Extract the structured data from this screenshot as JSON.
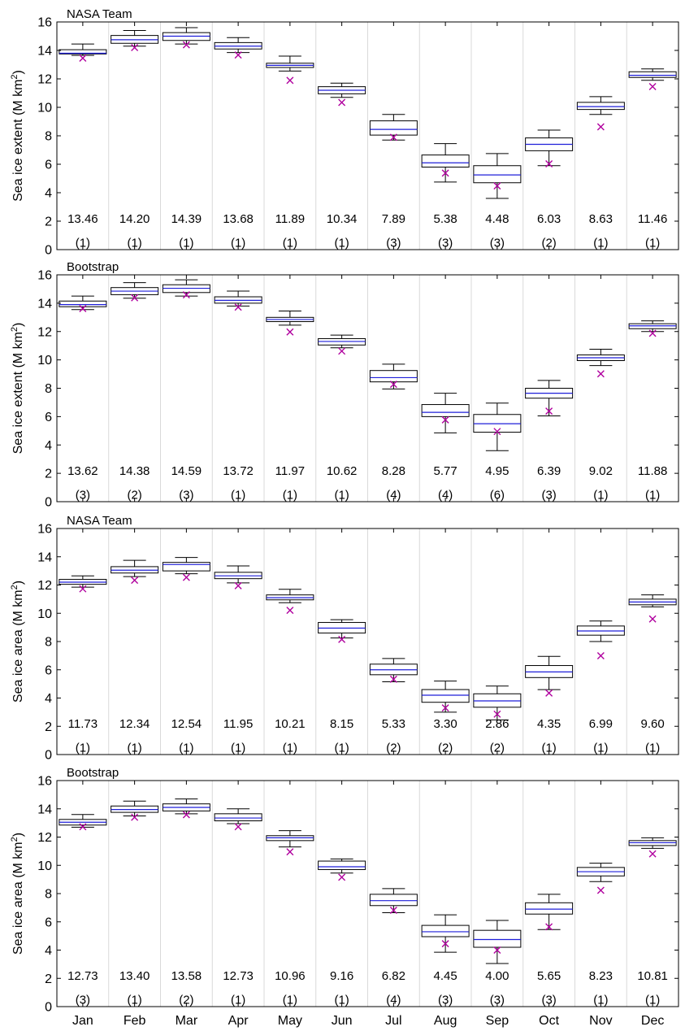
{
  "colors": {
    "median": "#1f1fd9",
    "minimum_marker": "#b0009e",
    "box": "#000000",
    "grid": "#d9d9d9"
  },
  "chart_data": [
    {
      "type": "box",
      "title": "NASA Team",
      "ylabel": "Sea ice extent (M km",
      "ylabel_sup": "2",
      "ylabel_close": ")",
      "ylim": [
        0,
        16
      ],
      "yticks": [
        "0",
        "2",
        "4",
        "6",
        "8",
        "10",
        "12",
        "14",
        "16"
      ],
      "categories": [
        "Jan",
        "Feb",
        "Mar",
        "Apr",
        "May",
        "Jun",
        "Jul",
        "Aug",
        "Sep",
        "Oct",
        "Nov",
        "Dec"
      ],
      "boxes": [
        {
          "whisker_low": 13.65,
          "q1": 13.75,
          "median": 13.8,
          "q3": 14.05,
          "whisker_high": 14.45
        },
        {
          "whisker_low": 14.3,
          "q1": 14.5,
          "median": 14.75,
          "q3": 15.05,
          "whisker_high": 15.4
        },
        {
          "whisker_low": 14.45,
          "q1": 14.7,
          "median": 15.0,
          "q3": 15.25,
          "whisker_high": 15.6
        },
        {
          "whisker_low": 13.85,
          "q1": 14.1,
          "median": 14.3,
          "q3": 14.55,
          "whisker_high": 14.9
        },
        {
          "whisker_low": 12.55,
          "q1": 12.8,
          "median": 12.95,
          "q3": 13.1,
          "whisker_high": 13.6
        },
        {
          "whisker_low": 10.7,
          "q1": 10.95,
          "median": 11.2,
          "q3": 11.45,
          "whisker_high": 11.7
        },
        {
          "whisker_low": 7.7,
          "q1": 8.05,
          "median": 8.45,
          "q3": 9.05,
          "whisker_high": 9.5
        },
        {
          "whisker_low": 4.75,
          "q1": 5.8,
          "median": 6.1,
          "q3": 6.65,
          "whisker_high": 7.45
        },
        {
          "whisker_low": 3.6,
          "q1": 4.7,
          "median": 5.25,
          "q3": 5.9,
          "whisker_high": 6.75
        },
        {
          "whisker_low": 5.9,
          "q1": 6.95,
          "median": 7.4,
          "q3": 7.85,
          "whisker_high": 8.4
        },
        {
          "whisker_low": 9.5,
          "q1": 9.85,
          "median": 10.05,
          "q3": 10.35,
          "whisker_high": 10.75
        },
        {
          "whisker_low": 11.9,
          "q1": 12.1,
          "median": 12.25,
          "q3": 12.5,
          "whisker_high": 12.7
        }
      ],
      "minimums": [
        13.46,
        14.2,
        14.39,
        13.68,
        11.89,
        10.34,
        7.89,
        5.38,
        4.48,
        6.03,
        8.63,
        11.46
      ],
      "value_labels": [
        "13.46",
        "14.20",
        "14.39",
        "13.68",
        "11.89",
        "10.34",
        "7.89",
        "5.38",
        "4.48",
        "6.03",
        "8.63",
        "11.46"
      ],
      "count_labels": [
        "(1)",
        "(1)",
        "(1)",
        "(1)",
        "(1)",
        "(1)",
        "(3)",
        "(3)",
        "(3)",
        "(2)",
        "(1)",
        "(1)"
      ]
    },
    {
      "type": "box",
      "title": "Bootstrap",
      "ylabel": "Sea ice extent (M km",
      "ylabel_sup": "2",
      "ylabel_close": ")",
      "ylim": [
        0,
        16
      ],
      "yticks": [
        "0",
        "2",
        "4",
        "6",
        "8",
        "10",
        "12",
        "14",
        "16"
      ],
      "categories": [
        "Jan",
        "Feb",
        "Mar",
        "Apr",
        "May",
        "Jun",
        "Jul",
        "Aug",
        "Sep",
        "Oct",
        "Nov",
        "Dec"
      ],
      "boxes": [
        {
          "whisker_low": 13.55,
          "q1": 13.75,
          "median": 13.9,
          "q3": 14.15,
          "whisker_high": 14.5
        },
        {
          "whisker_low": 14.35,
          "q1": 14.6,
          "median": 14.85,
          "q3": 15.1,
          "whisker_high": 15.45
        },
        {
          "whisker_low": 14.5,
          "q1": 14.75,
          "median": 15.05,
          "q3": 15.3,
          "whisker_high": 15.65
        },
        {
          "whisker_low": 13.8,
          "q1": 14.0,
          "median": 14.2,
          "q3": 14.45,
          "whisker_high": 14.85
        },
        {
          "whisker_low": 12.45,
          "q1": 12.7,
          "median": 12.85,
          "q3": 13.0,
          "whisker_high": 13.45
        },
        {
          "whisker_low": 10.85,
          "q1": 11.05,
          "median": 11.3,
          "q3": 11.5,
          "whisker_high": 11.75
        },
        {
          "whisker_low": 7.95,
          "q1": 8.45,
          "median": 8.75,
          "q3": 9.25,
          "whisker_high": 9.7
        },
        {
          "whisker_low": 4.85,
          "q1": 6.0,
          "median": 6.3,
          "q3": 6.85,
          "whisker_high": 7.65
        },
        {
          "whisker_low": 3.6,
          "q1": 4.9,
          "median": 5.5,
          "q3": 6.15,
          "whisker_high": 6.95
        },
        {
          "whisker_low": 6.05,
          "q1": 7.3,
          "median": 7.65,
          "q3": 8.0,
          "whisker_high": 8.55
        },
        {
          "whisker_low": 9.6,
          "q1": 9.95,
          "median": 10.15,
          "q3": 10.35,
          "whisker_high": 10.75
        },
        {
          "whisker_low": 12.0,
          "q1": 12.2,
          "median": 12.4,
          "q3": 12.55,
          "whisker_high": 12.75
        }
      ],
      "minimums": [
        13.62,
        14.38,
        14.59,
        13.72,
        11.97,
        10.62,
        8.28,
        5.77,
        4.95,
        6.39,
        9.02,
        11.88
      ],
      "value_labels": [
        "13.62",
        "14.38",
        "14.59",
        "13.72",
        "11.97",
        "10.62",
        "8.28",
        "5.77",
        "4.95",
        "6.39",
        "9.02",
        "11.88"
      ],
      "count_labels": [
        "(3)",
        "(2)",
        "(3)",
        "(1)",
        "(1)",
        "(1)",
        "(4)",
        "(4)",
        "(6)",
        "(3)",
        "(1)",
        "(1)"
      ]
    },
    {
      "type": "box",
      "title": "NASA Team",
      "ylabel": "Sea ice area (M km",
      "ylabel_sup": "2",
      "ylabel_close": ")",
      "ylim": [
        0,
        16
      ],
      "yticks": [
        "0",
        "2",
        "4",
        "6",
        "8",
        "10",
        "12",
        "14",
        "16"
      ],
      "categories": [
        "Jan",
        "Feb",
        "Mar",
        "Apr",
        "May",
        "Jun",
        "Jul",
        "Aug",
        "Sep",
        "Oct",
        "Nov",
        "Dec"
      ],
      "boxes": [
        {
          "whisker_low": 11.85,
          "q1": 12.05,
          "median": 12.2,
          "q3": 12.4,
          "whisker_high": 12.65
        },
        {
          "whisker_low": 12.6,
          "q1": 12.85,
          "median": 13.05,
          "q3": 13.3,
          "whisker_high": 13.75
        },
        {
          "whisker_low": 12.8,
          "q1": 13.0,
          "median": 13.45,
          "q3": 13.6,
          "whisker_high": 13.95
        },
        {
          "whisker_low": 12.15,
          "q1": 12.45,
          "median": 12.65,
          "q3": 12.9,
          "whisker_high": 13.35
        },
        {
          "whisker_low": 10.75,
          "q1": 10.95,
          "median": 11.1,
          "q3": 11.3,
          "whisker_high": 11.7
        },
        {
          "whisker_low": 8.25,
          "q1": 8.6,
          "median": 8.95,
          "q3": 9.35,
          "whisker_high": 9.55
        },
        {
          "whisker_low": 5.15,
          "q1": 5.65,
          "median": 6.0,
          "q3": 6.4,
          "whisker_high": 6.8
        },
        {
          "whisker_low": 3.0,
          "q1": 3.7,
          "median": 4.2,
          "q3": 4.6,
          "whisker_high": 5.2
        },
        {
          "whisker_low": 2.45,
          "q1": 3.35,
          "median": 3.8,
          "q3": 4.3,
          "whisker_high": 4.85
        },
        {
          "whisker_low": 4.6,
          "q1": 5.45,
          "median": 5.85,
          "q3": 6.3,
          "whisker_high": 6.95
        },
        {
          "whisker_low": 8.0,
          "q1": 8.45,
          "median": 8.75,
          "q3": 9.1,
          "whisker_high": 9.45
        },
        {
          "whisker_low": 10.45,
          "q1": 10.6,
          "median": 10.8,
          "q3": 11.0,
          "whisker_high": 11.3
        }
      ],
      "minimums": [
        11.73,
        12.34,
        12.54,
        11.95,
        10.21,
        8.15,
        5.33,
        3.3,
        2.86,
        4.35,
        6.99,
        9.6
      ],
      "value_labels": [
        "11.73",
        "12.34",
        "12.54",
        "11.95",
        "10.21",
        "8.15",
        "5.33",
        "3.30",
        "2.86",
        "4.35",
        "6.99",
        "9.60"
      ],
      "count_labels": [
        "(1)",
        "(1)",
        "(1)",
        "(1)",
        "(1)",
        "(1)",
        "(2)",
        "(2)",
        "(2)",
        "(1)",
        "(1)",
        "(1)"
      ]
    },
    {
      "type": "box",
      "title": "Bootstrap",
      "ylabel": "Sea ice area (M km",
      "ylabel_sup": "2",
      "ylabel_close": ")",
      "ylim": [
        0,
        16
      ],
      "yticks": [
        "0",
        "2",
        "4",
        "6",
        "8",
        "10",
        "12",
        "14",
        "16"
      ],
      "categories": [
        "Jan",
        "Feb",
        "Mar",
        "Apr",
        "May",
        "Jun",
        "Jul",
        "Aug",
        "Sep",
        "Oct",
        "Nov",
        "Dec"
      ],
      "boxes": [
        {
          "whisker_low": 12.7,
          "q1": 12.85,
          "median": 13.05,
          "q3": 13.25,
          "whisker_high": 13.6
        },
        {
          "whisker_low": 13.5,
          "q1": 13.75,
          "median": 13.95,
          "q3": 14.2,
          "whisker_high": 14.55
        },
        {
          "whisker_low": 13.65,
          "q1": 13.85,
          "median": 14.1,
          "q3": 14.35,
          "whisker_high": 14.7
        },
        {
          "whisker_low": 12.95,
          "q1": 13.15,
          "median": 13.35,
          "q3": 13.65,
          "whisker_high": 14.0
        },
        {
          "whisker_low": 11.3,
          "q1": 11.75,
          "median": 11.95,
          "q3": 12.1,
          "whisker_high": 12.45
        },
        {
          "whisker_low": 9.45,
          "q1": 9.7,
          "median": 9.9,
          "q3": 10.3,
          "whisker_high": 10.45
        },
        {
          "whisker_low": 6.65,
          "q1": 7.15,
          "median": 7.5,
          "q3": 7.95,
          "whisker_high": 8.35
        },
        {
          "whisker_low": 3.85,
          "q1": 4.95,
          "median": 5.3,
          "q3": 5.75,
          "whisker_high": 6.5
        },
        {
          "whisker_low": 3.05,
          "q1": 4.2,
          "median": 4.75,
          "q3": 5.4,
          "whisker_high": 6.1
        },
        {
          "whisker_low": 5.45,
          "q1": 6.55,
          "median": 6.9,
          "q3": 7.35,
          "whisker_high": 7.95
        },
        {
          "whisker_low": 8.85,
          "q1": 9.25,
          "median": 9.55,
          "q3": 9.85,
          "whisker_high": 10.15
        },
        {
          "whisker_low": 11.2,
          "q1": 11.4,
          "median": 11.6,
          "q3": 11.75,
          "whisker_high": 11.95
        }
      ],
      "minimums": [
        12.73,
        13.4,
        13.58,
        12.73,
        10.96,
        9.16,
        6.82,
        4.45,
        4.0,
        5.65,
        8.23,
        10.81
      ],
      "value_labels": [
        "12.73",
        "13.40",
        "13.58",
        "12.73",
        "10.96",
        "9.16",
        "6.82",
        "4.45",
        "4.00",
        "5.65",
        "8.23",
        "10.81"
      ],
      "count_labels": [
        "(3)",
        "(1)",
        "(2)",
        "(1)",
        "(1)",
        "(1)",
        "(4)",
        "(3)",
        "(3)",
        "(3)",
        "(1)",
        "(1)"
      ]
    }
  ]
}
